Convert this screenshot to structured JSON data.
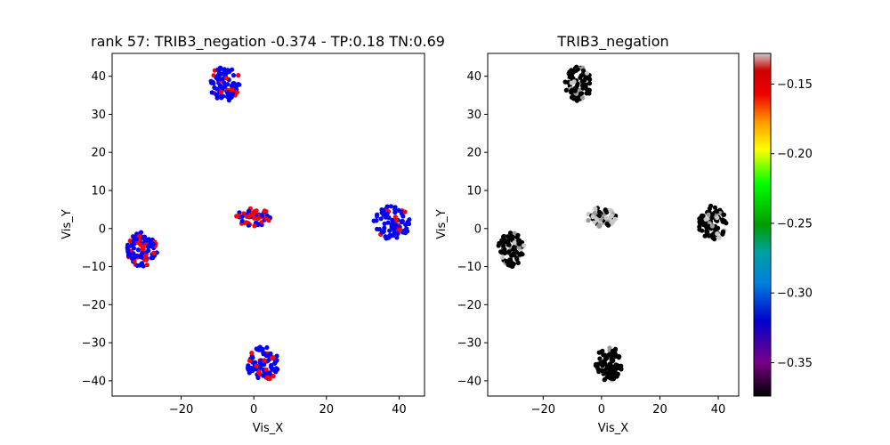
{
  "chart_data": [
    {
      "type": "scatter",
      "title": "rank 57: TRIB3_negation -0.374 - TP:0.18 TN:0.69",
      "xlabel": "Vis_X",
      "ylabel": "Vis_Y",
      "xlim": [
        -39,
        47
      ],
      "ylim": [
        -44,
        46
      ],
      "xticks": [
        -20,
        0,
        20,
        40
      ],
      "yticks": [
        -40,
        -30,
        -20,
        -10,
        0,
        10,
        20,
        30,
        40
      ],
      "xticklabels": [
        "−20",
        "0",
        "20",
        "40"
      ],
      "yticklabels": [
        "−40",
        "−30",
        "−20",
        "−10",
        "0",
        "10",
        "20",
        "30",
        "40"
      ],
      "grid": false,
      "colors": {
        "positive": "#ff0000",
        "negative": "#0000ff"
      },
      "clusters": [
        {
          "name": "cluster-top",
          "center": [
            -8,
            38
          ],
          "radius": [
            4.5,
            4.5
          ],
          "n": 85,
          "red_fraction": 0.3
        },
        {
          "name": "cluster-center",
          "center": [
            0,
            3
          ],
          "radius": [
            5,
            2.5
          ],
          "n": 60,
          "red_fraction": 0.55
        },
        {
          "name": "cluster-right",
          "center": [
            38,
            1.5
          ],
          "radius": [
            5,
            4.5
          ],
          "n": 90,
          "red_fraction": 0.25
        },
        {
          "name": "cluster-left",
          "center": [
            -31,
            -5.5
          ],
          "radius": [
            4.5,
            4.5
          ],
          "n": 90,
          "red_fraction": 0.25
        },
        {
          "name": "cluster-bottom",
          "center": [
            2.5,
            -35.5
          ],
          "radius": [
            4.5,
            4.5
          ],
          "n": 90,
          "red_fraction": 0.2
        }
      ]
    },
    {
      "type": "scatter",
      "title": "TRIB3_negation",
      "xlabel": "Vis_X",
      "ylabel": "Vis_Y",
      "xlim": [
        -39,
        47
      ],
      "ylim": [
        -44,
        46
      ],
      "xticks": [
        -20,
        0,
        20,
        40
      ],
      "yticks": [
        -40,
        -30,
        -20,
        -10,
        0,
        10,
        20,
        30,
        40
      ],
      "xticklabels": [
        "−20",
        "0",
        "20",
        "40"
      ],
      "yticklabels": [
        "−40",
        "−30",
        "−20",
        "−10",
        "0",
        "10",
        "20",
        "30",
        "40"
      ],
      "grid": false,
      "colormap": "nipy_spectral",
      "colorbar": {
        "range": [
          -0.374,
          -0.128
        ],
        "ticks": [
          -0.15,
          -0.2,
          -0.25,
          -0.3,
          -0.35
        ],
        "ticklabels": [
          "−0.15",
          "−0.20",
          "−0.25",
          "−0.30",
          "−0.35"
        ]
      },
      "clusters": [
        {
          "name": "cluster-top",
          "center": [
            -8,
            38
          ],
          "radius": [
            4.5,
            4.5
          ],
          "n": 85,
          "light_fraction": 0.2
        },
        {
          "name": "cluster-center",
          "center": [
            0,
            3
          ],
          "radius": [
            5,
            2.5
          ],
          "n": 60,
          "light_fraction": 0.7
        },
        {
          "name": "cluster-right",
          "center": [
            38,
            1.5
          ],
          "radius": [
            5,
            4.5
          ],
          "n": 90,
          "light_fraction": 0.2
        },
        {
          "name": "cluster-left",
          "center": [
            -31,
            -5.5
          ],
          "radius": [
            4.5,
            4.5
          ],
          "n": 90,
          "light_fraction": 0.15
        },
        {
          "name": "cluster-bottom",
          "center": [
            2.5,
            -35.5
          ],
          "radius": [
            4.5,
            4.5
          ],
          "n": 90,
          "light_fraction": 0.05
        }
      ]
    }
  ]
}
